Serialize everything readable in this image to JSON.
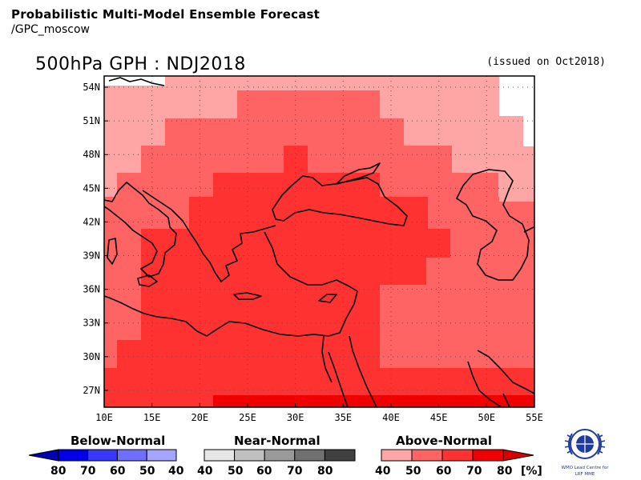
{
  "header": {
    "title": "Probabilistic Multi-Model Ensemble Forecast",
    "subtitle": "/GPC_moscow"
  },
  "map": {
    "title": "500hPa GPH : NDJ2018",
    "issued": "(issued on Oct2018)",
    "lon_labels": [
      "10E",
      "15E",
      "20E",
      "25E",
      "30E",
      "35E",
      "40E",
      "45E",
      "50E",
      "55E"
    ],
    "lat_labels": [
      "27N",
      "30N",
      "33N",
      "36N",
      "39N",
      "42N",
      "45N",
      "48N",
      "51N",
      "54N"
    ],
    "lon_range": [
      10,
      55
    ],
    "lat_range": [
      25.5,
      55
    ],
    "grid": "dotted"
  },
  "colors": {
    "above_40": "#fea5a5",
    "above_50": "#ff6464",
    "above_60": "#ff3232",
    "above_70": "#f00000",
    "above_80": "#d60000"
  },
  "legend": {
    "below": {
      "title": "Below-Normal",
      "values": [
        "80",
        "70",
        "60",
        "50",
        "40"
      ],
      "colors": [
        "#0000b4",
        "#0000e6",
        "#3737ff",
        "#6e6eff",
        "#a5a5ff"
      ]
    },
    "near": {
      "title": "Near-Normal",
      "values": [
        "40",
        "50",
        "60",
        "70",
        "80"
      ],
      "colors": [
        "#e6e6e6",
        "#c0c0c0",
        "#9a9a9a",
        "#707070",
        "#404040"
      ]
    },
    "above": {
      "title": "Above-Normal",
      "values": [
        "40",
        "50",
        "60",
        "70",
        "80"
      ],
      "colors": [
        "#fea5a5",
        "#ff6464",
        "#ff3232",
        "#f00000",
        "#d60000"
      ]
    },
    "unit": "[%]"
  },
  "logo": {
    "name": "wmo-lead-centre-logo",
    "text": "WMO Lead Centre for LRF MME"
  }
}
